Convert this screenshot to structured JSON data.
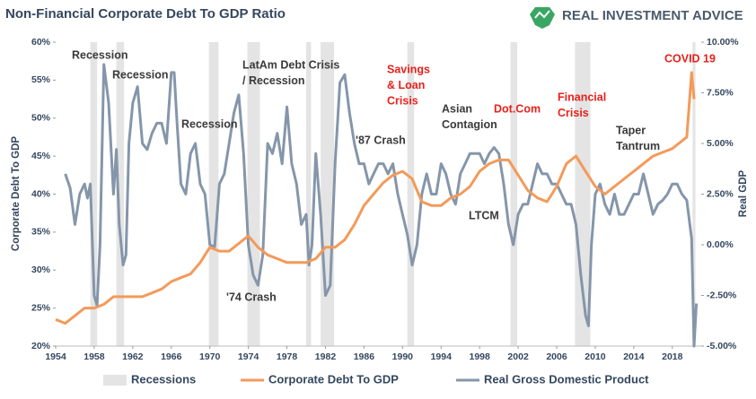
{
  "chart_data": {
    "type": "line",
    "title": "Non-Financial Corporate Debt To GDP Ratio",
    "brand": "REAL INVESTMENT ADVICE",
    "ylabel": "Corporate Debt To GDP",
    "y2label": "Real GDP",
    "xlim": [
      1954,
      2021
    ],
    "xticks": [
      1954,
      1958,
      1962,
      1966,
      1970,
      1974,
      1978,
      1982,
      1986,
      1990,
      1994,
      1998,
      2002,
      2006,
      2010,
      2014,
      2018
    ],
    "ylim": [
      20,
      60
    ],
    "yticks": [
      {
        "value": 20,
        "label": "20%"
      },
      {
        "value": 25,
        "label": "25%"
      },
      {
        "value": 30,
        "label": "30%"
      },
      {
        "value": 35,
        "label": "35%"
      },
      {
        "value": 40,
        "label": "40%"
      },
      {
        "value": 45,
        "label": "45%"
      },
      {
        "value": 50,
        "label": "50%"
      },
      {
        "value": 55,
        "label": "55%"
      },
      {
        "value": 60,
        "label": "60%"
      }
    ],
    "y2lim": [
      -5,
      10
    ],
    "y2ticks": [
      {
        "value": -5,
        "label": "-5.00%"
      },
      {
        "value": -2.5,
        "label": "-2.50%"
      },
      {
        "value": 0,
        "label": "0.00%"
      },
      {
        "value": 2.5,
        "label": "2.50%"
      },
      {
        "value": 5,
        "label": "5.00%"
      },
      {
        "value": 7.5,
        "label": "7.50%"
      },
      {
        "value": 10,
        "label": "10.00%"
      }
    ],
    "recessions": {
      "name": "Recessions",
      "color": "#e4e4e4",
      "ranges": [
        [
          1957.6,
          1958.3
        ],
        [
          1960.3,
          1961.1
        ],
        [
          1969.9,
          1970.9
        ],
        [
          1973.9,
          1975.2
        ],
        [
          1980.0,
          1980.5
        ],
        [
          1981.5,
          1982.9
        ],
        [
          1990.5,
          1991.2
        ],
        [
          2001.2,
          2001.9
        ],
        [
          2007.9,
          2009.5
        ],
        [
          2020.1,
          2020.4
        ]
      ]
    },
    "series": [
      {
        "name": "Corporate Debt To GDP",
        "color": "#f39a5a",
        "axis": "y",
        "x": [
          1954,
          1955,
          1956,
          1957,
          1958,
          1959,
          1960,
          1961,
          1962,
          1963,
          1964,
          1965,
          1966,
          1967,
          1968,
          1969,
          1970,
          1971,
          1972,
          1973,
          1974,
          1975,
          1976,
          1977,
          1978,
          1979,
          1980,
          1981,
          1982,
          1983,
          1984,
          1985,
          1986,
          1987,
          1988,
          1989,
          1990,
          1991,
          1992,
          1993,
          1994,
          1995,
          1996,
          1997,
          1998,
          1999,
          2000,
          2001,
          2002,
          2003,
          2004,
          2005,
          2006,
          2007,
          2008,
          2009,
          2010,
          2011,
          2012,
          2013,
          2014,
          2015,
          2016,
          2017,
          2018,
          2019,
          2019.5,
          2020,
          2020.25
        ],
        "values": [
          23.5,
          23,
          24,
          25,
          25,
          25.5,
          26.5,
          26.5,
          26.5,
          26.5,
          27,
          27.5,
          28.5,
          29,
          29.5,
          31,
          33,
          32.5,
          32.5,
          33.5,
          34.5,
          33,
          32,
          31.5,
          31,
          31,
          31,
          31.5,
          33,
          33,
          34,
          36,
          38.5,
          40,
          41.5,
          42.5,
          43,
          42,
          39,
          38.5,
          38.5,
          39.5,
          40,
          41,
          43,
          44,
          44.5,
          44.5,
          42.5,
          40.5,
          39.5,
          39,
          41,
          44,
          45,
          43,
          41,
          40,
          41,
          42,
          43,
          44,
          45,
          45.5,
          46,
          47,
          47.5,
          56,
          52.5
        ]
      },
      {
        "name": "Real Gross Domestic Product",
        "color": "#8596aa",
        "axis": "y2",
        "x": [
          1955,
          1955.5,
          1956,
          1956.5,
          1957,
          1957.3,
          1957.6,
          1958,
          1958.3,
          1958.6,
          1959,
          1959.5,
          1960,
          1960.3,
          1960.6,
          1961,
          1961.3,
          1961.6,
          1962,
          1962.5,
          1963,
          1963.5,
          1964,
          1964.5,
          1965,
          1965.5,
          1966,
          1966.3,
          1966.6,
          1967,
          1967.5,
          1968,
          1968.5,
          1969,
          1969.5,
          1970,
          1970.5,
          1971,
          1971.5,
          1972,
          1972.5,
          1973,
          1973.5,
          1974,
          1974.5,
          1975,
          1975.5,
          1976,
          1976.5,
          1977,
          1977.5,
          1978,
          1978.5,
          1979,
          1979.5,
          1980,
          1980.3,
          1980.6,
          1981,
          1981.5,
          1982,
          1982.5,
          1983,
          1983.5,
          1984,
          1984.5,
          1985,
          1985.5,
          1986,
          1986.5,
          1987,
          1987.5,
          1988,
          1988.5,
          1989,
          1989.5,
          1990,
          1990.5,
          1991,
          1991.5,
          1992,
          1992.5,
          1993,
          1993.5,
          1994,
          1994.5,
          1995,
          1995.5,
          1996,
          1996.5,
          1997,
          1997.5,
          1998,
          1998.5,
          1999,
          1999.5,
          2000,
          2000.5,
          2001,
          2001.5,
          2002,
          2002.5,
          2003,
          2003.5,
          2004,
          2004.5,
          2005,
          2005.5,
          2006,
          2006.5,
          2007,
          2007.5,
          2008,
          2008.5,
          2009,
          2009.3,
          2009.6,
          2010,
          2010.5,
          2011,
          2011.5,
          2012,
          2012.5,
          2013,
          2013.5,
          2014,
          2014.5,
          2015,
          2015.5,
          2016,
          2016.5,
          2017,
          2017.5,
          2018,
          2018.5,
          2019,
          2019.5,
          2020,
          2020.25,
          2020.5
        ],
        "values": [
          3.5,
          2.8,
          1,
          2.5,
          3,
          2.3,
          3,
          -2.5,
          -3,
          0,
          8.9,
          7,
          2.5,
          4.7,
          1,
          -1,
          -0.5,
          5,
          7,
          7.8,
          5,
          4.7,
          5.5,
          6,
          6,
          5,
          8.5,
          8.5,
          6,
          3,
          2.5,
          4.5,
          5,
          3,
          2.5,
          0,
          -0.1,
          3,
          3.5,
          5,
          6.5,
          7.4,
          4.5,
          0,
          -1.5,
          -2,
          -0.5,
          5,
          4.5,
          5.5,
          4,
          6.8,
          4,
          3,
          1,
          1.5,
          -1,
          0,
          4.5,
          1.5,
          -2.5,
          -2,
          4,
          8,
          8.4,
          6.5,
          5,
          4,
          4,
          3,
          3.5,
          4,
          4,
          3.5,
          4,
          2.5,
          1.5,
          0.5,
          -1,
          0,
          2.5,
          3.5,
          2.5,
          2.5,
          4,
          3.5,
          2.5,
          2,
          3.5,
          4,
          4.5,
          4.5,
          4.5,
          4,
          4.5,
          4.8,
          4.5,
          3,
          1,
          0,
          1.5,
          2,
          2,
          3,
          4,
          3.5,
          3.5,
          3,
          3,
          2.5,
          2,
          2,
          1,
          -1.5,
          -3.5,
          -4,
          0,
          2.5,
          3,
          2,
          1.5,
          2.5,
          1.5,
          1.5,
          2,
          2.5,
          2.5,
          3.5,
          2.5,
          1.5,
          2,
          2.2,
          2.5,
          3,
          3,
          2.5,
          2.2,
          0.3,
          -5,
          -2.9
        ]
      }
    ],
    "annotations": [
      {
        "lines": [
          "Recession"
        ],
        "color": "#3a3a3a"
      },
      {
        "lines": [
          "Recession"
        ],
        "color": "#3a3a3a"
      },
      {
        "lines": [
          "Recession"
        ],
        "color": "#3a3a3a"
      },
      {
        "lines": [
          "LatAm Debt Crisis",
          "/ Recession"
        ],
        "color": "#3a3a3a"
      },
      {
        "lines": [
          "'74 Crash"
        ],
        "color": "#3a3a3a"
      },
      {
        "lines": [
          "Savings",
          "& Loan",
          "Crisis"
        ],
        "color": "#e8201b"
      },
      {
        "lines": [
          "'87 Crash"
        ],
        "color": "#3a3a3a"
      },
      {
        "lines": [
          "Asian",
          "Contagion"
        ],
        "color": "#3a3a3a"
      },
      {
        "lines": [
          "LTCM"
        ],
        "color": "#3a3a3a"
      },
      {
        "lines": [
          "Dot.Com"
        ],
        "color": "#e8201b"
      },
      {
        "lines": [
          "Financial",
          "Crisis"
        ],
        "color": "#e8201b"
      },
      {
        "lines": [
          "Taper",
          "Tantrum"
        ],
        "color": "#3a3a3a"
      },
      {
        "lines": [
          "COVID 19"
        ],
        "color": "#e8201b"
      }
    ]
  }
}
